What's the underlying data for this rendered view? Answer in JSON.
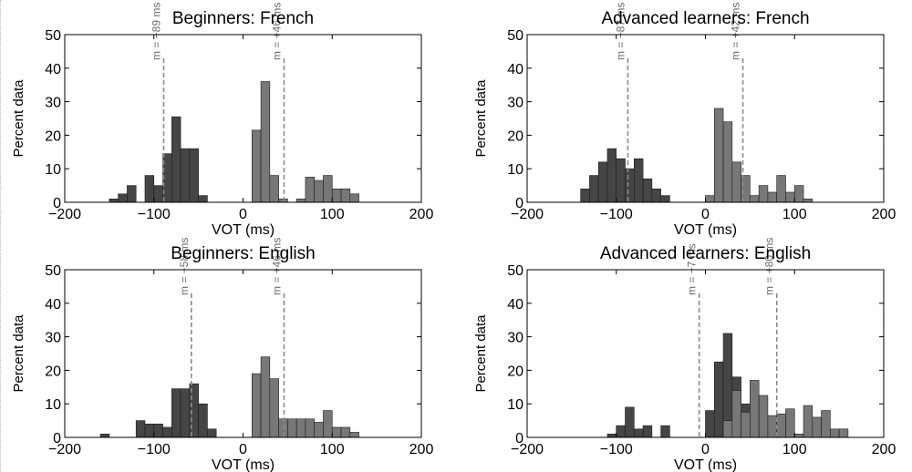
{
  "chart_data": [
    {
      "type": "bar",
      "title": "Beginners: French",
      "xlabel": "VOT (ms)",
      "ylabel": "Percent data",
      "xlim": [
        -200,
        200
      ],
      "ylim": [
        0,
        50
      ],
      "xticks": [
        -200,
        -100,
        0,
        100,
        200
      ],
      "yticks": [
        0,
        10,
        20,
        30,
        40,
        50
      ],
      "grid": false,
      "bin_width": 10,
      "series": [
        {
          "color": "#454545",
          "x": [
            -150,
            -140,
            -130,
            -110,
            -100,
            -90,
            -80,
            -70,
            -60,
            -50
          ],
          "values": [
            1,
            2.5,
            5,
            8,
            5,
            14.5,
            25.5,
            16,
            16,
            2
          ]
        },
        {
          "color": "#777777",
          "x": [
            10,
            20,
            30,
            40,
            60,
            70,
            80,
            90,
            100,
            110,
            120
          ],
          "values": [
            21.5,
            36,
            8,
            1,
            1,
            7.5,
            6.5,
            8,
            4,
            4,
            2.5
          ]
        }
      ],
      "annotations": [
        {
          "x": -89,
          "text": "m = −89 ms"
        },
        {
          "x": 46,
          "text": "m = +46 ms"
        }
      ]
    },
    {
      "type": "bar",
      "title": "Advanced learners: French",
      "xlabel": "VOT (ms)",
      "ylabel": "Percent data",
      "xlim": [
        -200,
        200
      ],
      "ylim": [
        0,
        50
      ],
      "xticks": [
        -200,
        -100,
        0,
        100,
        200
      ],
      "yticks": [
        0,
        10,
        20,
        30,
        40,
        50
      ],
      "grid": false,
      "bin_width": 10,
      "series": [
        {
          "color": "#454545",
          "x": [
            -140,
            -130,
            -120,
            -110,
            -100,
            -90,
            -80,
            -70,
            -60,
            -50
          ],
          "values": [
            4,
            8,
            12,
            16,
            13,
            10,
            13,
            7,
            4,
            2
          ]
        },
        {
          "color": "#777777",
          "x": [
            0,
            10,
            20,
            30,
            40,
            50,
            60,
            70,
            80,
            90,
            100,
            110
          ],
          "values": [
            2,
            28,
            24,
            12,
            8,
            2,
            5,
            3,
            8,
            3,
            5,
            1
          ]
        }
      ],
      "annotations": [
        {
          "x": -87,
          "text": "m = −87 ms"
        },
        {
          "x": 42,
          "text": "m = +42 ms"
        }
      ]
    },
    {
      "type": "bar",
      "title": "Beginners: English",
      "xlabel": "VOT (ms)",
      "ylabel": "Percent data",
      "xlim": [
        -200,
        200
      ],
      "ylim": [
        0,
        50
      ],
      "xticks": [
        -200,
        -100,
        0,
        100,
        200
      ],
      "yticks": [
        0,
        10,
        20,
        30,
        40,
        50
      ],
      "grid": false,
      "bin_width": 10,
      "series": [
        {
          "color": "#454545",
          "x": [
            -160,
            -120,
            -110,
            -100,
            -90,
            -80,
            -70,
            -60,
            -50,
            -40
          ],
          "values": [
            1,
            5,
            4,
            4,
            3,
            14.5,
            14.5,
            16,
            10,
            2.5
          ]
        },
        {
          "color": "#777777",
          "x": [
            10,
            20,
            30,
            40,
            50,
            60,
            70,
            80,
            90,
            100,
            110,
            120
          ],
          "values": [
            19,
            24,
            17.5,
            5.5,
            5.5,
            5.5,
            5.5,
            4.5,
            8,
            3,
            3,
            1.5
          ]
        }
      ],
      "annotations": [
        {
          "x": -58,
          "text": "m = −58 ms"
        },
        {
          "x": 46,
          "text": "m = +46 ms"
        }
      ]
    },
    {
      "type": "bar",
      "title": "Advanced learners: English",
      "xlabel": "VOT (ms)",
      "ylabel": "Percent data",
      "xlim": [
        -200,
        200
      ],
      "ylim": [
        0,
        50
      ],
      "xticks": [
        -200,
        -100,
        0,
        100,
        200
      ],
      "yticks": [
        0,
        10,
        20,
        30,
        40,
        50
      ],
      "grid": false,
      "bin_width": 10,
      "series": [
        {
          "color": "#454545",
          "x": [
            -110,
            -100,
            -90,
            -80,
            -70,
            -50,
            0,
            10,
            20,
            30,
            40
          ],
          "values": [
            1,
            3.5,
            9,
            2.5,
            3.5,
            3.5,
            8,
            22.5,
            31,
            18,
            10
          ]
        },
        {
          "color": "#777777",
          "x": [
            20,
            30,
            40,
            50,
            60,
            70,
            80,
            90,
            100,
            110,
            120,
            130,
            140,
            150
          ],
          "values": [
            5,
            14,
            7.5,
            17,
            12.5,
            6.5,
            7,
            8.5,
            1,
            9.5,
            6,
            8,
            2.5,
            2.5
          ]
        }
      ],
      "annotations": [
        {
          "x": -7,
          "text": "m = −7 ms"
        },
        {
          "x": 80,
          "text": "m = +80 ms"
        }
      ]
    }
  ]
}
